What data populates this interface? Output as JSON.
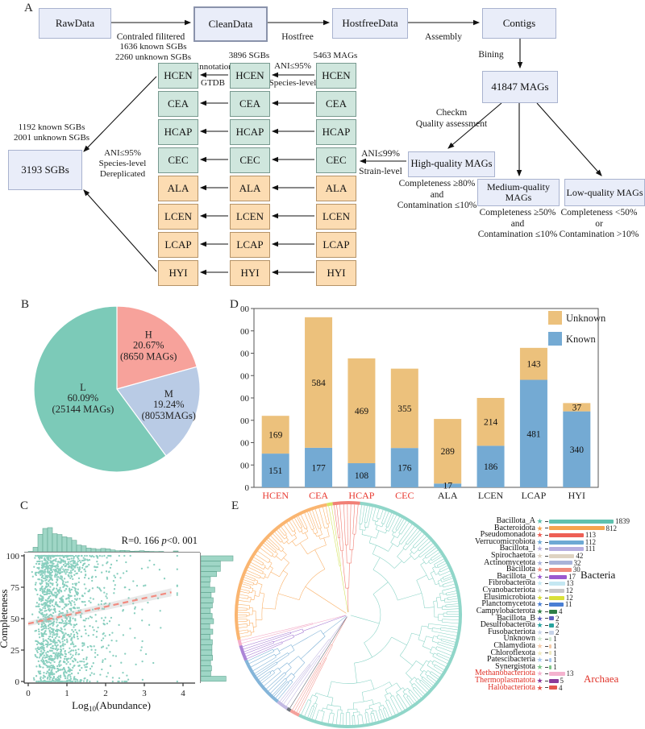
{
  "panels": {
    "a": "A",
    "b": "B",
    "c": "C",
    "d": "D",
    "e": "E"
  },
  "flowchart": {
    "top_boxes": [
      "RawData",
      "CleanData",
      "HostfreeData",
      "Contigs"
    ],
    "arrow_labels": {
      "filter": "Contraled filitered",
      "hostfree": "Hostfree",
      "assembly": "Assembly",
      "bining": "Bining"
    },
    "mags_total": "41847 MAGs",
    "checkm": "Checkm\nQuality assessment",
    "quality_boxes": {
      "high": "High-quality MAGs",
      "medium": "Medium-quality MAGs",
      "low": "Low-quality MAGs"
    },
    "criteria": {
      "high": "Completeness ≥80%\nand\nContamination ≤10%",
      "medium": "Completeness ≥50%\nand\nContamination ≤10%",
      "low": "Completeness <50%\nor\nContamination >10%"
    },
    "ani99": "ANI≤99%",
    "strain": "Strain-level",
    "col_headers": {
      "col1": "1636 known SGBs\n2260 unknown SGBs",
      "col2": "3896 SGBs",
      "col3": "5463 MAGs"
    },
    "annotation": "Annotation",
    "gtdb": "GTDB",
    "ani95": "ANI≤95%",
    "species": "Species-level",
    "dereplicated": "ANI≤95%\nSpecies-level\nDereplicated",
    "sgb_header": "1192 known SGBs\n2001 unknown SGBs",
    "sgb_box": "3193 SGBs",
    "cohorts": [
      {
        "name": "HCEN",
        "group": "teal"
      },
      {
        "name": "CEA",
        "group": "teal"
      },
      {
        "name": "HCAP",
        "group": "teal"
      },
      {
        "name": "CEC",
        "group": "teal"
      },
      {
        "name": "ALA",
        "group": "orange"
      },
      {
        "name": "LCEN",
        "group": "orange"
      },
      {
        "name": "LCAP",
        "group": "orange"
      },
      {
        "name": "HYI",
        "group": "orange"
      }
    ]
  },
  "chart_data": [
    {
      "type": "pie",
      "slices": [
        {
          "label": "H",
          "pct": 20.67,
          "count_text": "(8650 MAGs)",
          "color": "#f7a29b"
        },
        {
          "label": "M",
          "pct": 19.24,
          "count_text": "(8053MAGs)",
          "color": "#b9cbe5"
        },
        {
          "label": "L",
          "pct": 60.09,
          "count_text": "(25144 MAGs)",
          "color": "#7ccab8"
        }
      ],
      "start_angle_deg": 0,
      "direction": "clockwise"
    },
    {
      "type": "bar",
      "categories": [
        "HCEN",
        "CEA",
        "HCAP",
        "CEC",
        "ALA",
        "LCEN",
        "LCAP",
        "HYI"
      ],
      "category_label_colors": [
        "#e8382f",
        "#e8382f",
        "#e8382f",
        "#e8382f",
        "#222222",
        "#222222",
        "#222222",
        "#222222"
      ],
      "series": [
        {
          "name": "Unknown",
          "color": "#ecc17c",
          "values": [
            169,
            584,
            469,
            355,
            289,
            214,
            143,
            37
          ]
        },
        {
          "name": "Known",
          "color": "#74aad3",
          "values": [
            151,
            177,
            108,
            176,
            17,
            186,
            481,
            340
          ]
        }
      ],
      "ylim": [
        0,
        800
      ],
      "ytick_step": 100,
      "legend_position": "top-right",
      "grid": false
    },
    {
      "type": "scatter",
      "annotation_r": "R=0. 166 ",
      "annotation_p": "p",
      "annotation_rest": "<0. 001",
      "xlabel_pre": "Log",
      "xlabel_sub": "10",
      "xlabel_post": "(Abundance)",
      "ylabel": "Completeness",
      "xticks": [
        0,
        1,
        2,
        3,
        4
      ],
      "yticks": [
        0,
        25,
        50,
        75,
        100
      ],
      "xlim": [
        0,
        4
      ],
      "ylim": [
        0,
        100
      ],
      "regression": {
        "x0": 0,
        "y0": 46,
        "x1": 3.7,
        "y1": 71
      },
      "point_color": "#7ccab8",
      "hist_fill": "#9fd6c6",
      "hist_stroke": "#63a793",
      "regression_color": "#f28b80",
      "marginals": [
        "top",
        "right"
      ]
    },
    {
      "type": "tree",
      "groups": {
        "bacteria": "Bacteria",
        "archaea": "Archaea"
      },
      "phyla": [
        {
          "name": "Bacillota_A",
          "value": 1839,
          "color": "#5fc1ae",
          "domain": "bacteria"
        },
        {
          "name": "Bacteroidota",
          "value": 812,
          "color": "#f6a44e",
          "domain": "bacteria"
        },
        {
          "name": "Pseudomonadota",
          "value": 113,
          "color": "#ee5f55",
          "domain": "bacteria"
        },
        {
          "name": "Verrucomicrobiota",
          "value": 112,
          "color": "#6da9d4",
          "domain": "bacteria"
        },
        {
          "name": "Bacillota_I",
          "value": 111,
          "color": "#b6aee0",
          "domain": "bacteria"
        },
        {
          "name": "Spirochaetota",
          "value": 42,
          "color": "#ded3c2",
          "domain": "bacteria"
        },
        {
          "name": "Actinomycetota",
          "value": 32,
          "color": "#a9b3d9",
          "domain": "bacteria"
        },
        {
          "name": "Bacillota",
          "value": 30,
          "color": "#f08a7c",
          "domain": "bacteria"
        },
        {
          "name": "Bacillota_C",
          "value": 17,
          "color": "#9b59d0",
          "domain": "bacteria"
        },
        {
          "name": "Fibrobacterota",
          "value": 13,
          "color": "#c4e7f2",
          "domain": "bacteria"
        },
        {
          "name": "Cyanobacteriota",
          "value": 12,
          "color": "#c8c8c8",
          "domain": "bacteria"
        },
        {
          "name": "Elusimicrobiota",
          "value": 12,
          "color": "#d9e038",
          "domain": "bacteria"
        },
        {
          "name": "Planctomycetota",
          "value": 11,
          "color": "#4a7fd4",
          "domain": "bacteria"
        },
        {
          "name": "Campylobacterota",
          "value": 4,
          "color": "#2e7d46",
          "domain": "bacteria"
        },
        {
          "name": "Bacillota_B",
          "value": 2,
          "color": "#5c5fc0",
          "domain": "bacteria"
        },
        {
          "name": "Desulfobacterota",
          "value": 2,
          "color": "#27a39e",
          "domain": "bacteria"
        },
        {
          "name": "Fusobacteriota",
          "value": 2,
          "color": "#c7d3e8",
          "domain": "bacteria"
        },
        {
          "name": "Unknown",
          "value": 1,
          "color": "#cfe8cf",
          "domain": "bacteria"
        },
        {
          "name": "Chlamydiota",
          "value": 1,
          "color": "#f5cba8",
          "domain": "bacteria"
        },
        {
          "name": "Chloroflexota",
          "value": 1,
          "color": "#efe9bd",
          "domain": "bacteria"
        },
        {
          "name": "Patescibacteria",
          "value": 1,
          "color": "#a9c8f0",
          "domain": "bacteria"
        },
        {
          "name": "Synergistota",
          "value": 1,
          "color": "#7cc688",
          "domain": "bacteria"
        },
        {
          "name": "Methanobacteriota",
          "value": 13,
          "color": "#f4b3cf",
          "domain": "archaea"
        },
        {
          "name": "Thermoplasmatota",
          "value": 5,
          "color": "#8a3b9a",
          "domain": "archaea"
        },
        {
          "name": "Halobacteriota",
          "value": 4,
          "color": "#e4574e",
          "domain": "archaea"
        }
      ]
    }
  ]
}
